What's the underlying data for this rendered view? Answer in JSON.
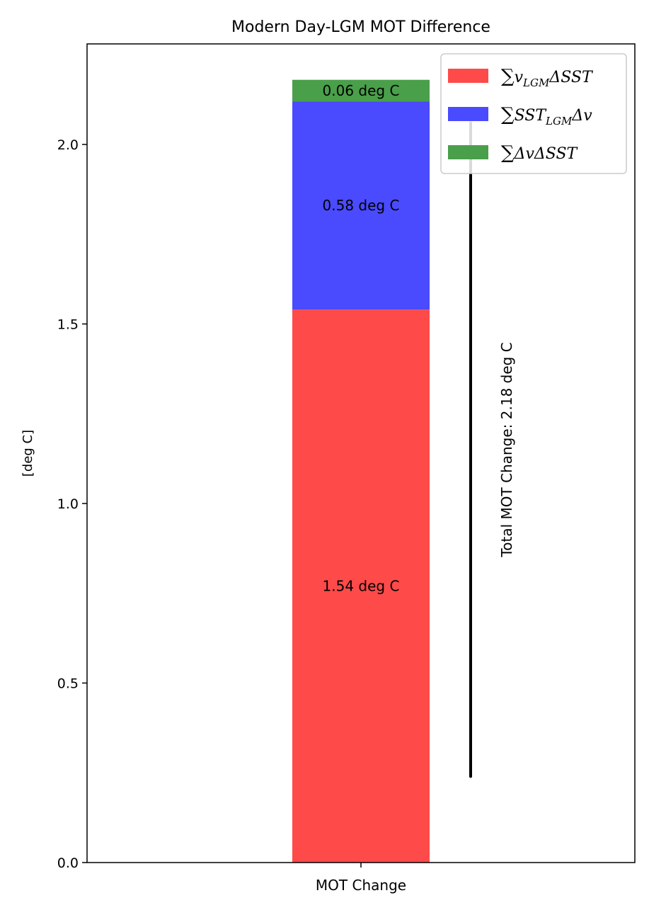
{
  "chart_data": {
    "type": "bar",
    "title": "Modern Day-LGM MOT Difference",
    "xlabel": "",
    "ylabel": "[deg C]",
    "categories": [
      "MOT Change"
    ],
    "stacked": true,
    "ylim": [
      0,
      2.28
    ],
    "yticks": [
      0.0,
      0.5,
      1.0,
      1.5,
      2.0
    ],
    "ytick_labels": [
      "0.0",
      "0.5",
      "1.0",
      "1.5",
      "2.0"
    ],
    "legend_position": "top-right",
    "series": [
      {
        "name": "∑v_LGM ΔSST",
        "legend_main": "∑",
        "legend_pre": "v",
        "legend_sub": "LGM",
        "legend_post": "ΔSST",
        "values": [
          1.54
        ],
        "color": "#ff4a4a",
        "label": "1.54 deg C"
      },
      {
        "name": "∑SST_LGM Δv",
        "legend_main": "∑",
        "legend_pre": "SST",
        "legend_sub": "LGM",
        "legend_post": "Δv",
        "values": [
          0.58
        ],
        "color": "#4a4aff",
        "label": "0.58 deg C"
      },
      {
        "name": "∑ΔvΔSST",
        "legend_main": "∑",
        "legend_pre": "ΔvΔSST",
        "legend_sub": "",
        "legend_post": "",
        "values": [
          0.06
        ],
        "color": "#4a9f4a",
        "label": "0.06 deg C"
      }
    ],
    "total_line": {
      "y_start": 0.24,
      "y_end": 2.06,
      "label": "Total MOT Change: 2.18 deg C"
    }
  }
}
